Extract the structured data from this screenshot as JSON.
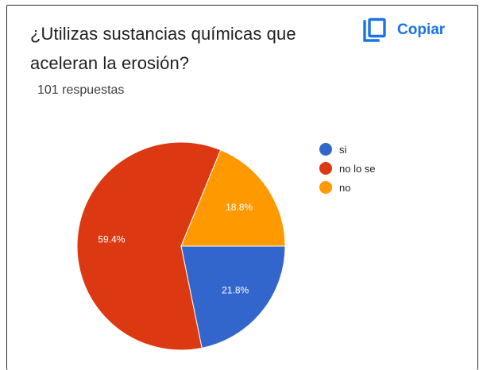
{
  "question": {
    "title": "¿Utilizas sustancias químicas que aceleran la erosión?",
    "responses": "101 respuestas"
  },
  "toolbar": {
    "copy_label": "Copiar",
    "copy_icon": "copy-icon"
  },
  "colors": {
    "accent": "#1a73e8",
    "si": "#3366cc",
    "no_lo_se": "#dc3912",
    "no": "#ff9900"
  },
  "chart_data": {
    "type": "pie",
    "slices": [
      {
        "label": "si",
        "value": 21.8,
        "display": "21.8%",
        "color": "#3366cc"
      },
      {
        "label": "no lo se",
        "value": 59.4,
        "display": "59.4%",
        "color": "#dc3912"
      },
      {
        "label": "no",
        "value": 18.8,
        "display": "18.8%",
        "color": "#ff9900"
      }
    ],
    "legend_position": "right",
    "start": "3 o'clock, clockwise"
  }
}
